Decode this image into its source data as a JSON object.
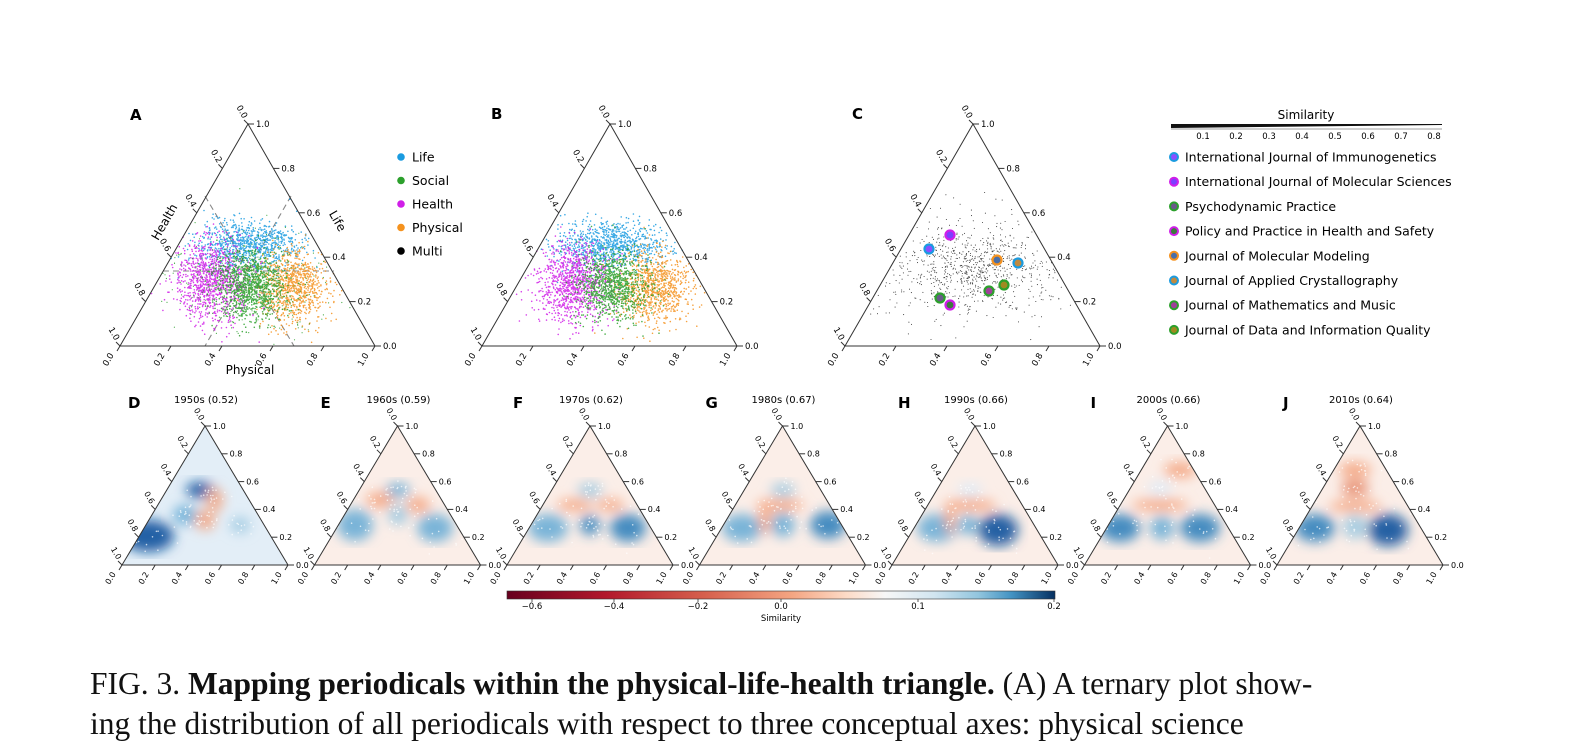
{
  "panels": {
    "main": [
      {
        "letter": "A",
        "bottom_title": "Physical",
        "left_title": "Health",
        "right_title": "Life"
      },
      {
        "letter": "B"
      },
      {
        "letter": "C"
      }
    ],
    "decades": [
      {
        "letter": "D",
        "title": "1950s (0.52)"
      },
      {
        "letter": "E",
        "title": "1960s (0.59)"
      },
      {
        "letter": "F",
        "title": "1970s (0.62)"
      },
      {
        "letter": "G",
        "title": "1980s (0.67)"
      },
      {
        "letter": "H",
        "title": "1990s (0.66)"
      },
      {
        "letter": "I",
        "title": "2000s (0.66)"
      },
      {
        "letter": "J",
        "title": "2010s (0.64)"
      }
    ]
  },
  "ticks": {
    "bottom": [
      "0.0",
      "0.2",
      "0.4",
      "0.6",
      "0.8",
      "1.0"
    ],
    "right": [
      "1.0",
      "0.8",
      "0.6",
      "0.4",
      "0.2",
      "0.0"
    ],
    "left": [
      "0.0",
      "0.2",
      "0.4",
      "0.6",
      "0.8",
      "1.0"
    ]
  },
  "legend_fields": [
    {
      "label": "Life",
      "color": "#1a9be0"
    },
    {
      "label": "Social",
      "color": "#2ca02c"
    },
    {
      "label": "Health",
      "color": "#d01ee8"
    },
    {
      "label": "Physical",
      "color": "#f5921e"
    },
    {
      "label": "Multi",
      "color": "#000000"
    }
  ],
  "legend_journals": [
    {
      "label": "International Journal of Immunogenetics",
      "edge": "#1a9be0",
      "fill": "#8a4fff"
    },
    {
      "label": "International Journal of Molecular Sciences",
      "edge": "#d01ee8",
      "fill": "#7b3fff"
    },
    {
      "label": "Psychodynamic Practice",
      "edge": "#2ca02c",
      "fill": "#6a5a8a"
    },
    {
      "label": "Policy and Practice in Health and Safety",
      "edge": "#d01ee8",
      "fill": "#3d7a3d"
    },
    {
      "label": "Journal of Molecular Modeling",
      "edge": "#f5921e",
      "fill": "#4a6fa8"
    },
    {
      "label": "Journal of Applied Crystallography",
      "edge": "#1a9be0",
      "fill": "#c08a40"
    },
    {
      "label": "Journal of Mathematics and Music",
      "edge": "#2ca02c",
      "fill": "#a0409a"
    },
    {
      "label": "Journal of Data and Information Quality",
      "edge": "#2ca02c",
      "fill": "#a08a20"
    }
  ],
  "similarity_bar": {
    "title": "Similarity",
    "ticks": [
      "0.1",
      "0.2",
      "0.3",
      "0.4",
      "0.5",
      "0.6",
      "0.7",
      "0.8"
    ]
  },
  "colorbar": {
    "label": "Similarity",
    "ticks": [
      "−0.6",
      "−0.4",
      "−0.2",
      "0.0",
      "0.1",
      "0.2"
    ]
  },
  "caption": {
    "fig": "FIG. 3.",
    "title": "Mapping periodicals within the physical-life-health triangle.",
    "text": "(A) A ternary plot show-",
    "next_line": "ing the distribution of all periodicals with respect to three conceptual axes: physical science"
  }
}
